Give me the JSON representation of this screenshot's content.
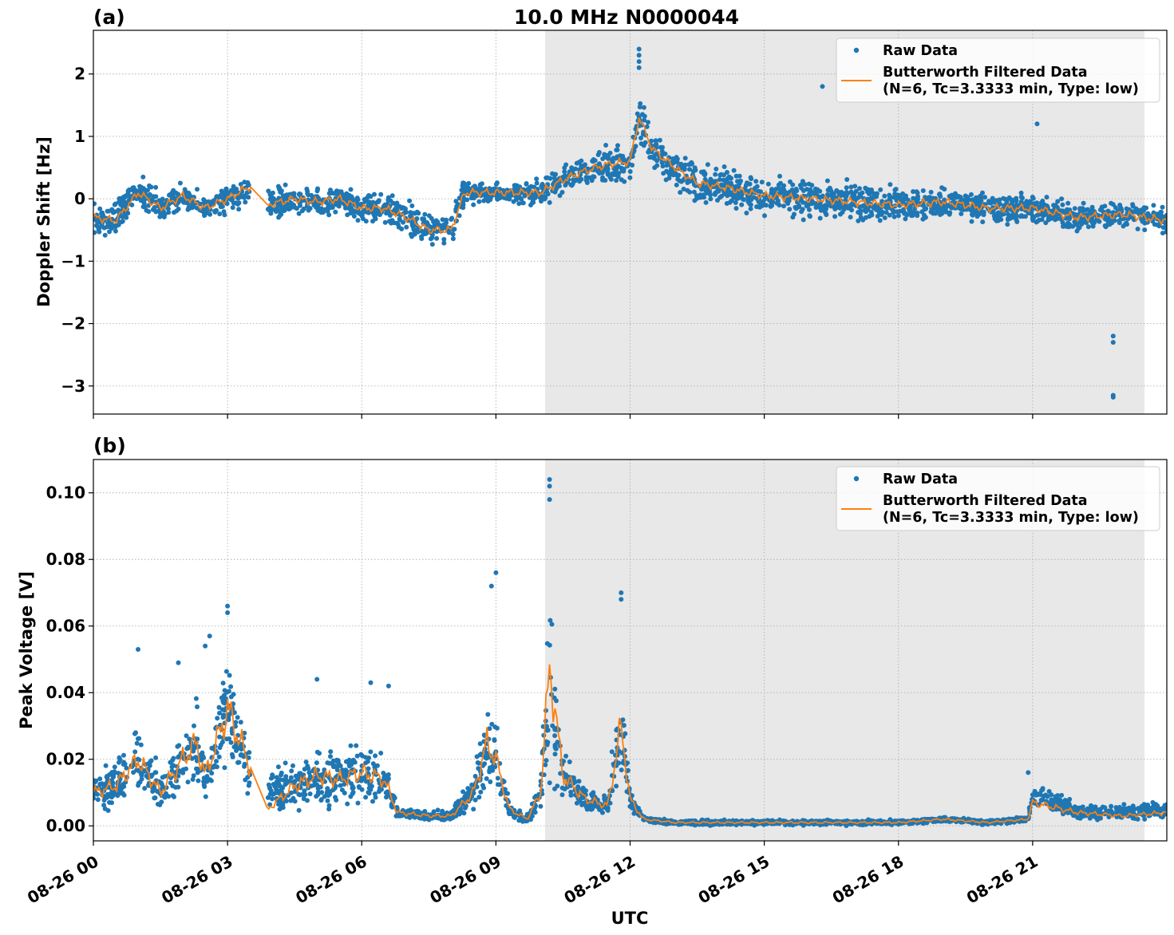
{
  "title": "10.0 MHz N0000044",
  "xlabel": "UTC",
  "colors": {
    "raw": "#1f77b4",
    "filtered": "#ff7f0e",
    "shade": "#e8e8e8",
    "grid": "#b0b0b0"
  },
  "legend": {
    "raw": "Raw Data",
    "filtered_line1": "Butterworth Filtered Data",
    "filtered_line2": "(N=6, Tc=3.3333 min, Type: low)"
  },
  "chart_data": [
    {
      "type": "scatter",
      "panel_label": "(a)",
      "ylabel": "Doppler Shift [Hz]",
      "x_unit": "hours UTC on 08-26",
      "xlim": [
        0,
        24
      ],
      "ylim": [
        -3.45,
        2.7
      ],
      "yticks": [
        2,
        1,
        0,
        -1,
        -2,
        -3
      ],
      "ytick_labels": [
        "2",
        "1",
        "0",
        "−1",
        "−2",
        "−3"
      ],
      "xticks": [
        0,
        3,
        6,
        9,
        12,
        15,
        18,
        21
      ],
      "xtick_labels": [
        "08-26 00",
        "08-26 03",
        "08-26 06",
        "08-26 09",
        "08-26 12",
        "08-26 15",
        "08-26 18",
        "08-26 21"
      ],
      "grid": true,
      "legend_position": "top-right",
      "shaded_region": [
        10.1,
        23.5
      ],
      "data_gap": [
        3.5,
        3.9
      ],
      "series": [
        {
          "name": "Raw Data",
          "marker": "dot",
          "x": [
            0,
            0.5,
            1,
            1.5,
            2,
            2.5,
            3,
            3.5,
            3.9,
            4.5,
            5,
            5.5,
            6,
            6.5,
            7,
            7.5,
            8,
            8.3,
            9,
            9.5,
            10,
            10.5,
            11,
            11.5,
            12,
            12.2,
            12.5,
            13,
            13.5,
            14,
            15,
            16,
            17,
            18,
            19,
            20,
            21,
            22,
            23,
            24
          ],
          "y": [
            -0.3,
            -0.35,
            0.1,
            -0.15,
            0.05,
            -0.15,
            0.0,
            0.1,
            -0.1,
            0.0,
            -0.05,
            0.0,
            -0.15,
            -0.15,
            -0.3,
            -0.5,
            -0.5,
            0.1,
            0.1,
            0.1,
            0.1,
            0.3,
            0.45,
            0.55,
            0.6,
            1.3,
            0.8,
            0.5,
            0.25,
            0.2,
            0.05,
            0.0,
            -0.05,
            -0.1,
            -0.05,
            -0.15,
            -0.15,
            -0.3,
            -0.25,
            -0.35
          ],
          "band": [
            0.35,
            0.35,
            0.35,
            0.3,
            0.3,
            0.3,
            0.3,
            0.3,
            0.35,
            0.3,
            0.3,
            0.3,
            0.3,
            0.3,
            0.35,
            0.35,
            0.35,
            0.25,
            0.2,
            0.25,
            0.3,
            0.3,
            0.35,
            0.4,
            0.45,
            0.5,
            0.4,
            0.4,
            0.4,
            0.4,
            0.4,
            0.4,
            0.4,
            0.35,
            0.3,
            0.3,
            0.3,
            0.3,
            0.3,
            0.25
          ]
        },
        {
          "name": "Butterworth Filtered Data",
          "marker": "line",
          "x": [
            0,
            0.5,
            1,
            1.5,
            2,
            2.5,
            3,
            3.5,
            3.9,
            4.5,
            5,
            5.5,
            6,
            6.5,
            7,
            7.5,
            8,
            8.3,
            9,
            9.5,
            10,
            10.5,
            11,
            11.5,
            12,
            12.2,
            12.5,
            13,
            13.5,
            14,
            15,
            16,
            17,
            18,
            19,
            20,
            21,
            22,
            23,
            24
          ],
          "y": [
            -0.3,
            -0.35,
            0.1,
            -0.15,
            0.05,
            -0.15,
            0.0,
            0.2,
            -0.1,
            0.0,
            -0.05,
            0.0,
            -0.15,
            -0.15,
            -0.3,
            -0.5,
            -0.5,
            0.1,
            0.1,
            0.1,
            0.1,
            0.3,
            0.45,
            0.55,
            0.6,
            1.3,
            0.8,
            0.5,
            0.25,
            0.2,
            0.05,
            0.0,
            -0.05,
            -0.1,
            -0.05,
            -0.15,
            -0.15,
            -0.3,
            -0.25,
            -0.35
          ]
        }
      ],
      "outliers": {
        "x": [
          12.2,
          12.2,
          12.2,
          12.2,
          22.8,
          22.8,
          22.8,
          22.8,
          16.3,
          21.1
        ],
        "y": [
          2.4,
          2.3,
          2.2,
          2.1,
          -2.2,
          -2.3,
          -3.15,
          -3.18,
          1.8,
          1.2
        ]
      }
    },
    {
      "type": "scatter",
      "panel_label": "(b)",
      "ylabel": "Peak Voltage [V]",
      "x_unit": "hours UTC on 08-26",
      "xlim": [
        0,
        24
      ],
      "ylim": [
        -0.0045,
        0.11
      ],
      "yticks": [
        0.0,
        0.02,
        0.04,
        0.06,
        0.08,
        0.1
      ],
      "ytick_labels": [
        "0.00",
        "0.02",
        "0.04",
        "0.06",
        "0.08",
        "0.10"
      ],
      "xticks": [
        0,
        3,
        6,
        9,
        12,
        15,
        18,
        21
      ],
      "xtick_labels": [
        "08-26 00",
        "08-26 03",
        "08-26 06",
        "08-26 09",
        "08-26 12",
        "08-26 15",
        "08-26 18",
        "08-26 21"
      ],
      "grid": true,
      "legend_position": "top-right",
      "shaded_region": [
        10.1,
        23.5
      ],
      "data_gap": [
        3.5,
        3.9
      ],
      "series": [
        {
          "name": "Raw Data",
          "marker": "dot",
          "x": [
            0,
            0.5,
            1,
            1.5,
            2,
            2.3,
            2.5,
            3,
            3.5,
            3.9,
            4.5,
            5,
            5.5,
            6,
            6.5,
            6.8,
            7.5,
            8,
            8.5,
            8.8,
            9,
            9.3,
            9.7,
            10,
            10.2,
            10.5,
            11,
            11.5,
            11.8,
            12,
            12.3,
            13,
            14,
            16,
            18,
            19,
            20,
            20.9,
            21,
            22,
            23,
            24
          ],
          "y": [
            0.01,
            0.012,
            0.02,
            0.01,
            0.02,
            0.025,
            0.015,
            0.035,
            0.015,
            0.01,
            0.012,
            0.015,
            0.014,
            0.016,
            0.014,
            0.004,
            0.003,
            0.003,
            0.01,
            0.025,
            0.02,
            0.005,
            0.002,
            0.01,
            0.045,
            0.015,
            0.008,
            0.006,
            0.03,
            0.008,
            0.002,
            0.001,
            0.001,
            0.001,
            0.001,
            0.002,
            0.001,
            0.002,
            0.01,
            0.004,
            0.004,
            0.005
          ],
          "band": [
            0.008,
            0.008,
            0.014,
            0.008,
            0.014,
            0.016,
            0.01,
            0.02,
            0.01,
            0.008,
            0.01,
            0.012,
            0.012,
            0.012,
            0.01,
            0.002,
            0.002,
            0.002,
            0.006,
            0.02,
            0.015,
            0.003,
            0.002,
            0.006,
            0.04,
            0.01,
            0.005,
            0.004,
            0.02,
            0.004,
            0.001,
            0.001,
            0.001,
            0.001,
            0.001,
            0.001,
            0.001,
            0.001,
            0.005,
            0.003,
            0.003,
            0.004
          ]
        },
        {
          "name": "Butterworth Filtered Data",
          "marker": "line",
          "x": [
            0,
            0.5,
            1,
            1.5,
            2,
            2.3,
            2.5,
            3,
            3.5,
            3.9,
            4.5,
            5,
            5.5,
            6,
            6.5,
            6.8,
            7.5,
            8,
            8.5,
            8.8,
            9,
            9.3,
            9.7,
            10,
            10.2,
            10.5,
            11,
            11.5,
            11.8,
            12,
            12.3,
            13,
            14,
            16,
            18,
            19,
            20,
            20.9,
            21,
            22,
            23,
            24
          ],
          "y": [
            0.01,
            0.012,
            0.02,
            0.01,
            0.02,
            0.025,
            0.015,
            0.035,
            0.018,
            0.005,
            0.012,
            0.015,
            0.014,
            0.016,
            0.014,
            0.004,
            0.003,
            0.003,
            0.01,
            0.025,
            0.02,
            0.005,
            0.002,
            0.01,
            0.048,
            0.015,
            0.008,
            0.006,
            0.03,
            0.008,
            0.002,
            0.001,
            0.001,
            0.001,
            0.001,
            0.002,
            0.001,
            0.002,
            0.007,
            0.004,
            0.003,
            0.004
          ]
        }
      ],
      "outliers": {
        "x": [
          10.2,
          10.2,
          10.2,
          11.8,
          11.8,
          9,
          8.9,
          3,
          3,
          2.6,
          1,
          1.9,
          2.5,
          5,
          6.2,
          6.6,
          20.9
        ],
        "y": [
          0.104,
          0.102,
          0.098,
          0.07,
          0.068,
          0.076,
          0.072,
          0.066,
          0.064,
          0.057,
          0.053,
          0.049,
          0.054,
          0.044,
          0.043,
          0.042,
          0.016
        ]
      }
    }
  ]
}
